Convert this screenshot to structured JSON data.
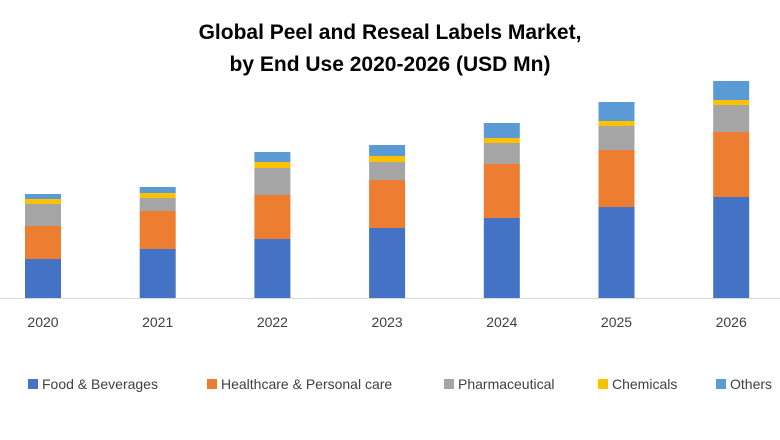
{
  "chart_data": {
    "type": "bar",
    "stacked": true,
    "title_line1": "Global Peel and Reseal Labels Market,",
    "title_line2": "by End Use 2020-2026 (USD Mn)",
    "xlabel": "",
    "ylabel": "",
    "categories": [
      "2020",
      "2021",
      "2022",
      "2023",
      "2024",
      "2025",
      "2026"
    ],
    "ylim": [
      0,
      220
    ],
    "grid": false,
    "legend_position": "bottom",
    "series": [
      {
        "name": "Food & Beverages",
        "color": "#4472C4",
        "values": [
          39,
          49,
          59,
          70,
          80,
          91,
          101
        ]
      },
      {
        "name": "Healthcare & Personal care",
        "color": "#ED7D31",
        "values": [
          33,
          38,
          44,
          48,
          54,
          57,
          65
        ]
      },
      {
        "name": "Pharmaceutical",
        "color": "#A5A5A5",
        "values": [
          22,
          13,
          27,
          18,
          21,
          24,
          27
        ]
      },
      {
        "name": "Chemicals",
        "color": "#FFC000",
        "values": [
          5,
          5,
          6,
          6,
          5,
          5,
          5
        ]
      },
      {
        "name": "Others",
        "color": "#5B9BD5",
        "values": [
          5,
          6,
          10,
          11,
          15,
          19,
          19
        ]
      }
    ]
  }
}
